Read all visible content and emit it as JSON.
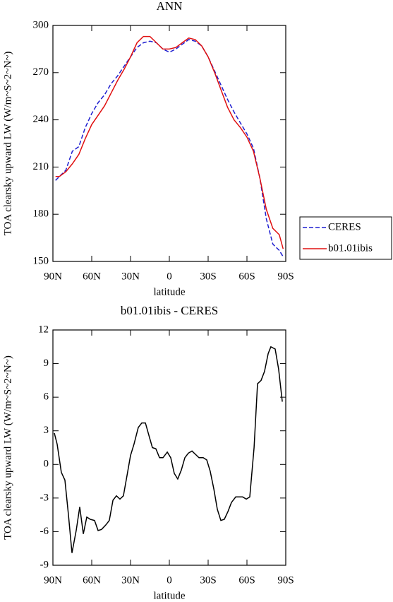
{
  "chart_data": [
    {
      "type": "line",
      "title": "ANN",
      "xlabel": "latitude",
      "ylabel": "TOA clearsky upward LW (W/m~S~2~N~)",
      "x": [
        88,
        85,
        80,
        75,
        70,
        65,
        60,
        55,
        50,
        45,
        40,
        35,
        30,
        25,
        20,
        15,
        10,
        5,
        0,
        -5,
        -10,
        -15,
        -20,
        -25,
        -30,
        -35,
        -40,
        -45,
        -50,
        -55,
        -60,
        -65,
        -70,
        -75,
        -80,
        -85,
        -88
      ],
      "series": [
        {
          "name": "CERES",
          "color": "#1f1fd0",
          "dash": "dashed",
          "values": [
            201.5,
            204,
            208,
            220,
            223,
            235,
            244,
            251,
            256,
            263,
            268,
            274,
            280,
            286,
            289,
            290,
            289,
            285,
            283,
            285,
            288,
            291,
            290,
            287,
            280,
            271,
            262,
            253,
            245,
            238,
            231,
            222,
            203,
            177,
            161,
            157,
            153
          ]
        },
        {
          "name": "b01.01ibis",
          "color": "#e01010",
          "dash": "solid",
          "values": [
            204,
            204,
            207,
            212,
            218,
            228,
            237,
            243,
            249,
            257,
            265,
            272,
            280,
            289,
            293,
            293,
            289,
            285,
            285,
            286,
            289,
            292,
            291,
            287,
            280,
            270,
            259,
            248,
            240,
            235,
            229,
            220,
            203,
            183,
            171,
            167,
            158
          ]
        }
      ],
      "xlim": [
        90,
        -90
      ],
      "xticks": [
        {
          "value": 90,
          "label": "90N"
        },
        {
          "value": 60,
          "label": "60N"
        },
        {
          "value": 30,
          "label": "30N"
        },
        0,
        {
          "value": -30,
          "label": "30S"
        },
        {
          "value": -60,
          "label": "60S"
        },
        {
          "value": -90,
          "label": "90S"
        }
      ],
      "ylim": [
        150,
        300
      ],
      "yticks": [
        150,
        180,
        210,
        240,
        270,
        300
      ],
      "legend": "outside-right"
    },
    {
      "type": "line",
      "title": "b01.01ibis - CERES",
      "xlabel": "latitude",
      "ylabel": "TOA clearsky upward LW (W/m~S~2~N~)",
      "x": [
        88.9,
        86.7,
        83.5,
        80.7,
        78.0,
        75.3,
        72.0,
        69.3,
        66.5,
        63.8,
        61.1,
        57.8,
        55.1,
        52.4,
        49.1,
        46.4,
        43.6,
        40.9,
        38.2,
        35.5,
        32.7,
        30.0,
        27.3,
        24.0,
        21.3,
        18.5,
        15.8,
        13.1,
        10.4,
        7.6,
        4.9,
        1.6,
        -1.1,
        -3.8,
        -6.5,
        -9.3,
        -12.0,
        -14.7,
        -17.5,
        -20.2,
        -22.9,
        -26.2,
        -28.9,
        -31.6,
        -34.4,
        -37.1,
        -39.8,
        -42.5,
        -45.3,
        -48.0,
        -51.3,
        -54.0,
        -56.7,
        -59.5,
        -62.2,
        -65.5,
        -68.2,
        -70.9,
        -73.6,
        -76.4,
        -78.5,
        -81.8,
        -84.5,
        -87.3
      ],
      "series": [
        {
          "name": "b01.01ibis - CERES",
          "color": "#000000",
          "dash": "solid",
          "values": [
            2.8,
            1.8,
            -0.7,
            -1.4,
            -4.5,
            -7.9,
            -5.9,
            -3.8,
            -6.2,
            -4.7,
            -4.9,
            -5.0,
            -5.9,
            -5.8,
            -5.4,
            -5.0,
            -3.2,
            -2.8,
            -3.1,
            -2.8,
            -1.0,
            0.8,
            1.8,
            3.3,
            3.7,
            3.7,
            2.6,
            1.5,
            1.4,
            0.6,
            0.6,
            1.1,
            0.6,
            -0.8,
            -1.3,
            -0.5,
            0.6,
            1.0,
            1.2,
            0.9,
            0.6,
            0.6,
            0.4,
            -0.6,
            -2.2,
            -4.0,
            -5.0,
            -4.9,
            -4.2,
            -3.4,
            -2.9,
            -2.9,
            -2.9,
            -3.1,
            -2.9,
            1.5,
            7.2,
            7.5,
            8.3,
            9.9,
            10.5,
            10.3,
            8.5,
            5.6
          ]
        }
      ],
      "xlim": [
        90,
        -90
      ],
      "xticks": [
        {
          "value": 90,
          "label": "90N"
        },
        {
          "value": 60,
          "label": "60N"
        },
        {
          "value": 30,
          "label": "30N"
        },
        0,
        {
          "value": -30,
          "label": "30S"
        },
        {
          "value": -60,
          "label": "60S"
        },
        {
          "value": -90,
          "label": "90S"
        }
      ],
      "ylim": [
        -9,
        12
      ],
      "yticks": [
        -9,
        -6,
        -3,
        0,
        3,
        6,
        9,
        12
      ]
    }
  ]
}
